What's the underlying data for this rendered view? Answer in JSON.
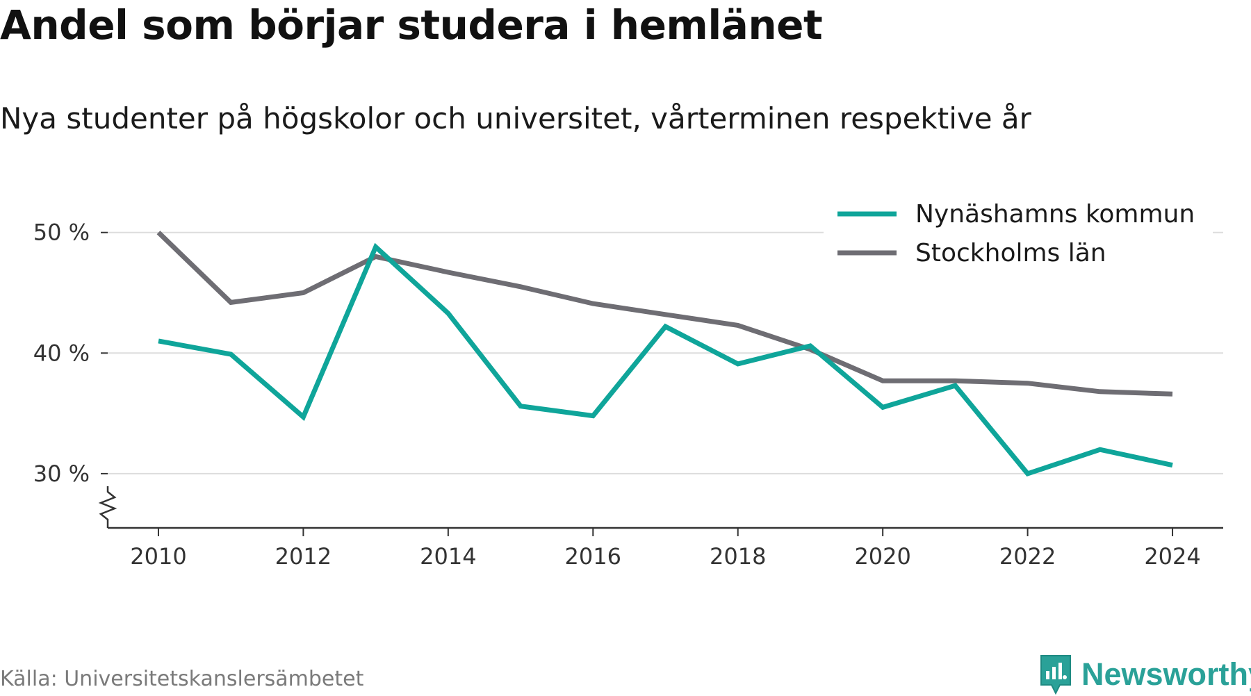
{
  "colors": {
    "series_1": "#0fa59a",
    "series_2": "#6e6d73",
    "grid": "#dddddd",
    "axis": "#333333",
    "brand": "#2aa198"
  },
  "logo": {
    "text": "Newsworthy",
    "icon": "newsworthy-chart-bubble-icon"
  },
  "source": "Källa: Universitetskanslersämbetet",
  "chart_data": {
    "type": "line",
    "title": "Andel som börjar studera i hemlänet",
    "subtitle": "Nya studenter på högskolor och universitet, vårterminen respektive år",
    "x": [
      2010,
      2011,
      2012,
      2013,
      2014,
      2015,
      2016,
      2017,
      2018,
      2019,
      2020,
      2021,
      2022,
      2023,
      2024
    ],
    "x_ticks": [
      "2010",
      "2012",
      "2014",
      "2016",
      "2018",
      "2020",
      "2022",
      "2024"
    ],
    "y_ticks": [
      "30 %",
      "40 %",
      "50 %"
    ],
    "y_tick_values": [
      30,
      40,
      50
    ],
    "ylim": [
      25.5,
      52
    ],
    "xlim": [
      2009.3,
      2024.7
    ],
    "y_axis_break": true,
    "grid": true,
    "legend_position": "top-right",
    "series": [
      {
        "name": "Nynäshamns kommun",
        "values": [
          41.0,
          39.9,
          34.7,
          48.8,
          43.3,
          35.6,
          34.8,
          42.2,
          39.1,
          40.6,
          35.5,
          37.3,
          30.0,
          32.0,
          30.7
        ]
      },
      {
        "name": "Stockholms län",
        "values": [
          50.0,
          44.2,
          45.0,
          48.0,
          46.7,
          45.5,
          44.1,
          43.2,
          42.3,
          40.3,
          37.7,
          37.7,
          37.5,
          36.8,
          36.6
        ]
      }
    ]
  }
}
